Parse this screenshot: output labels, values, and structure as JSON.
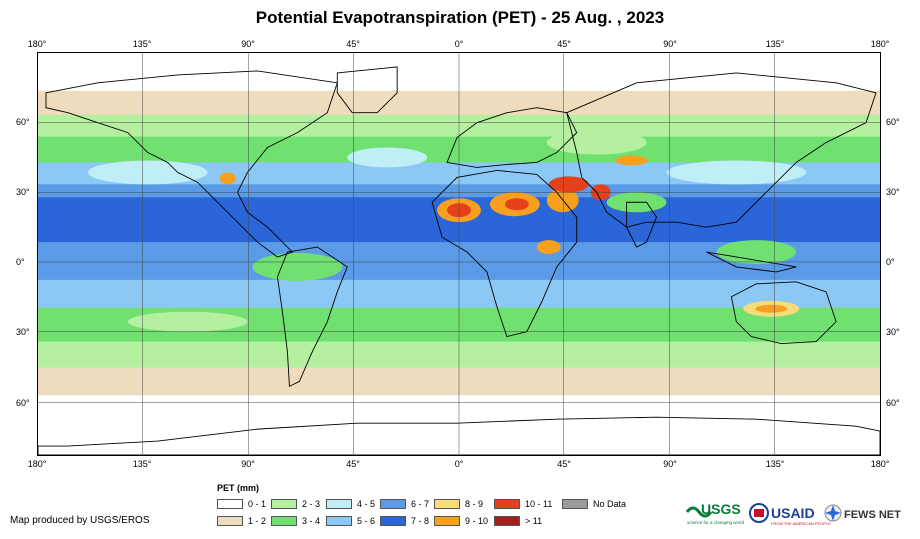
{
  "header": {
    "title": "Potential Evapotranspiration (PET) - 25 Aug. , 2023"
  },
  "axes": {
    "lon_labels": [
      "180°",
      "135°",
      "90°",
      "45°",
      "0°",
      "45°",
      "90°",
      "135°",
      "180°"
    ],
    "lat_labels_left": [
      "60°",
      "30°",
      "0°",
      "30°",
      "60°"
    ],
    "lat_labels_right": [
      "60°",
      "30°",
      "0°",
      "30°",
      "60°"
    ]
  },
  "legend": {
    "title": "PET (mm)",
    "items": [
      {
        "label": "0 - 1",
        "color": "#ffffff"
      },
      {
        "label": "1 - 2",
        "color": "#eedcbc"
      },
      {
        "label": "2 - 3",
        "color": "#b4f0a0"
      },
      {
        "label": "3 - 4",
        "color": "#70e070"
      },
      {
        "label": "4 - 5",
        "color": "#bfeef6"
      },
      {
        "label": "5 - 6",
        "color": "#8cc8f4"
      },
      {
        "label": "6 - 7",
        "color": "#5a9ae6"
      },
      {
        "label": "7 - 8",
        "color": "#2a66d8"
      },
      {
        "label": "8 - 9",
        "color": "#f6dc78"
      },
      {
        "label": "9 - 10",
        "color": "#f7a020"
      },
      {
        "label": "10 - 11",
        "color": "#e4401c"
      },
      {
        "label": "> 11",
        "color": "#a32020"
      },
      {
        "label": "No Data",
        "color": "#9b9b9b"
      }
    ]
  },
  "footer": {
    "credit": "Map produced by USGS/EROS",
    "logos": {
      "usgs": "USGS",
      "usgs_tagline": "science for a changing world",
      "usaid": "USAID",
      "usaid_tagline": "FROM THE AMERICAN PEOPLE",
      "fews": "FEWS NET"
    }
  }
}
